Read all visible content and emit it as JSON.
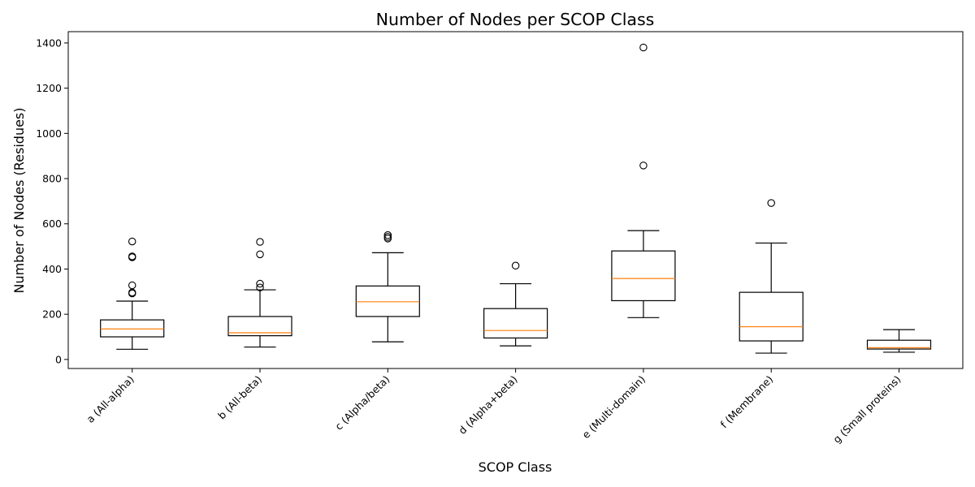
{
  "chart_data": {
    "type": "box",
    "title": "Number of Nodes per SCOP Class",
    "xlabel": "SCOP Class",
    "ylabel": "Number of Nodes (Residues)",
    "ylim": [
      -40,
      1450
    ],
    "yticks": [
      0,
      200,
      400,
      600,
      800,
      1000,
      1200,
      1400
    ],
    "grid": false,
    "colors": {
      "box": "#000000",
      "median": "#ff7f0e",
      "whisker": "#000000",
      "flier": "#000000"
    },
    "categories": [
      "a (All-alpha)",
      "b (All-beta)",
      "c (Alpha/beta)",
      "d (Alpha+beta)",
      "e (Multi-domain)",
      "f (Membrane)",
      "g (Small proteins)"
    ],
    "boxes": [
      {
        "whislo": 45,
        "q1": 100,
        "med": 135,
        "q3": 175,
        "whishi": 258,
        "fliers": [
          292,
          296,
          328,
          452,
          456,
          522
        ]
      },
      {
        "whislo": 55,
        "q1": 105,
        "med": 118,
        "q3": 190,
        "whishi": 308,
        "fliers": [
          318,
          335,
          465,
          520
        ]
      },
      {
        "whislo": 78,
        "q1": 190,
        "med": 255,
        "q3": 325,
        "whishi": 472,
        "fliers": [
          535,
          542,
          550
        ]
      },
      {
        "whislo": 60,
        "q1": 95,
        "med": 128,
        "q3": 225,
        "whishi": 335,
        "fliers": [
          415
        ]
      },
      {
        "whislo": 185,
        "q1": 260,
        "med": 358,
        "q3": 480,
        "whishi": 570,
        "fliers": [
          858,
          1380
        ]
      },
      {
        "whislo": 28,
        "q1": 82,
        "med": 145,
        "q3": 297,
        "whishi": 515,
        "fliers": [
          692
        ]
      },
      {
        "whislo": 32,
        "q1": 46,
        "med": 52,
        "q3": 85,
        "whishi": 132,
        "fliers": []
      }
    ]
  }
}
